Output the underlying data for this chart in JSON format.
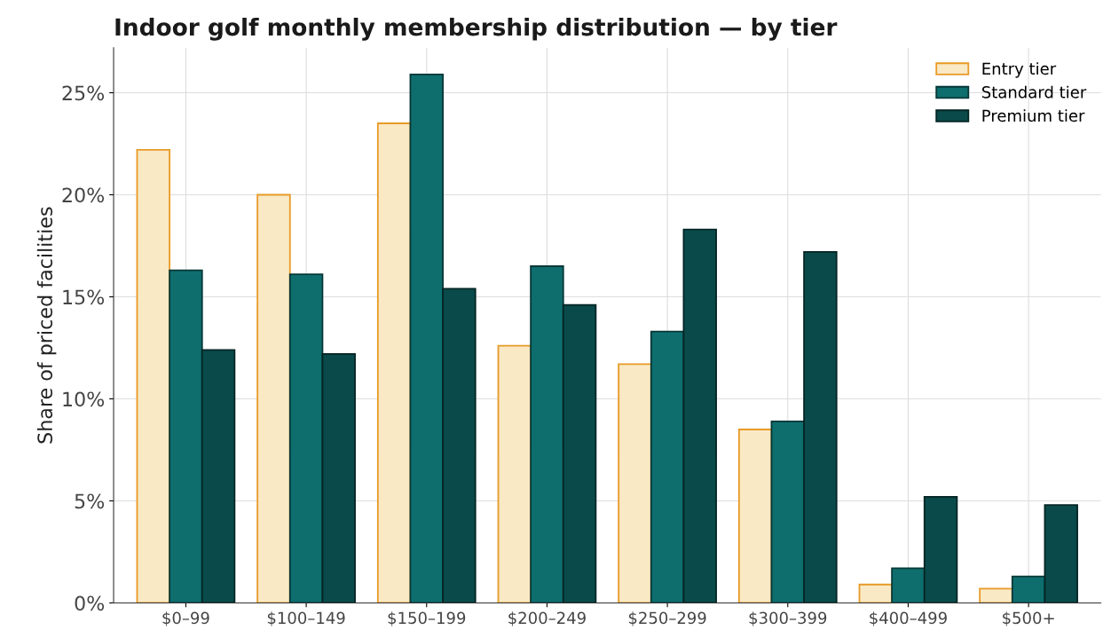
{
  "chart_data": {
    "type": "bar",
    "title": "Indoor golf monthly membership distribution — by tier",
    "ylabel": "Share of priced facilities",
    "categories": [
      "$0–99",
      "$100–149",
      "$150–199",
      "$200–249",
      "$250–299",
      "$300–399",
      "$400–499",
      "$500+"
    ],
    "series": [
      {
        "name": "Entry tier",
        "color": "#f9e9c4",
        "values": [
          22.2,
          20.0,
          23.5,
          12.6,
          11.7,
          8.5,
          0.9,
          0.7
        ]
      },
      {
        "name": "Standard tier",
        "color": "#0e6e6e",
        "values": [
          16.3,
          16.1,
          25.9,
          16.5,
          13.3,
          8.9,
          1.7,
          1.3
        ]
      },
      {
        "name": "Premium tier",
        "color": "#0a4a4a",
        "values": [
          12.4,
          12.2,
          15.4,
          14.6,
          18.3,
          17.2,
          5.2,
          4.8
        ]
      }
    ],
    "ylim": [
      0,
      27.2
    ],
    "yticks": [
      {
        "value": 0,
        "label": "0%"
      },
      {
        "value": 5,
        "label": "5%"
      },
      {
        "value": 10,
        "label": "10%"
      },
      {
        "value": 15,
        "label": "15%"
      },
      {
        "value": 20,
        "label": "20%"
      },
      {
        "value": 25,
        "label": "25%"
      }
    ],
    "grid": true,
    "legend": "top right"
  }
}
